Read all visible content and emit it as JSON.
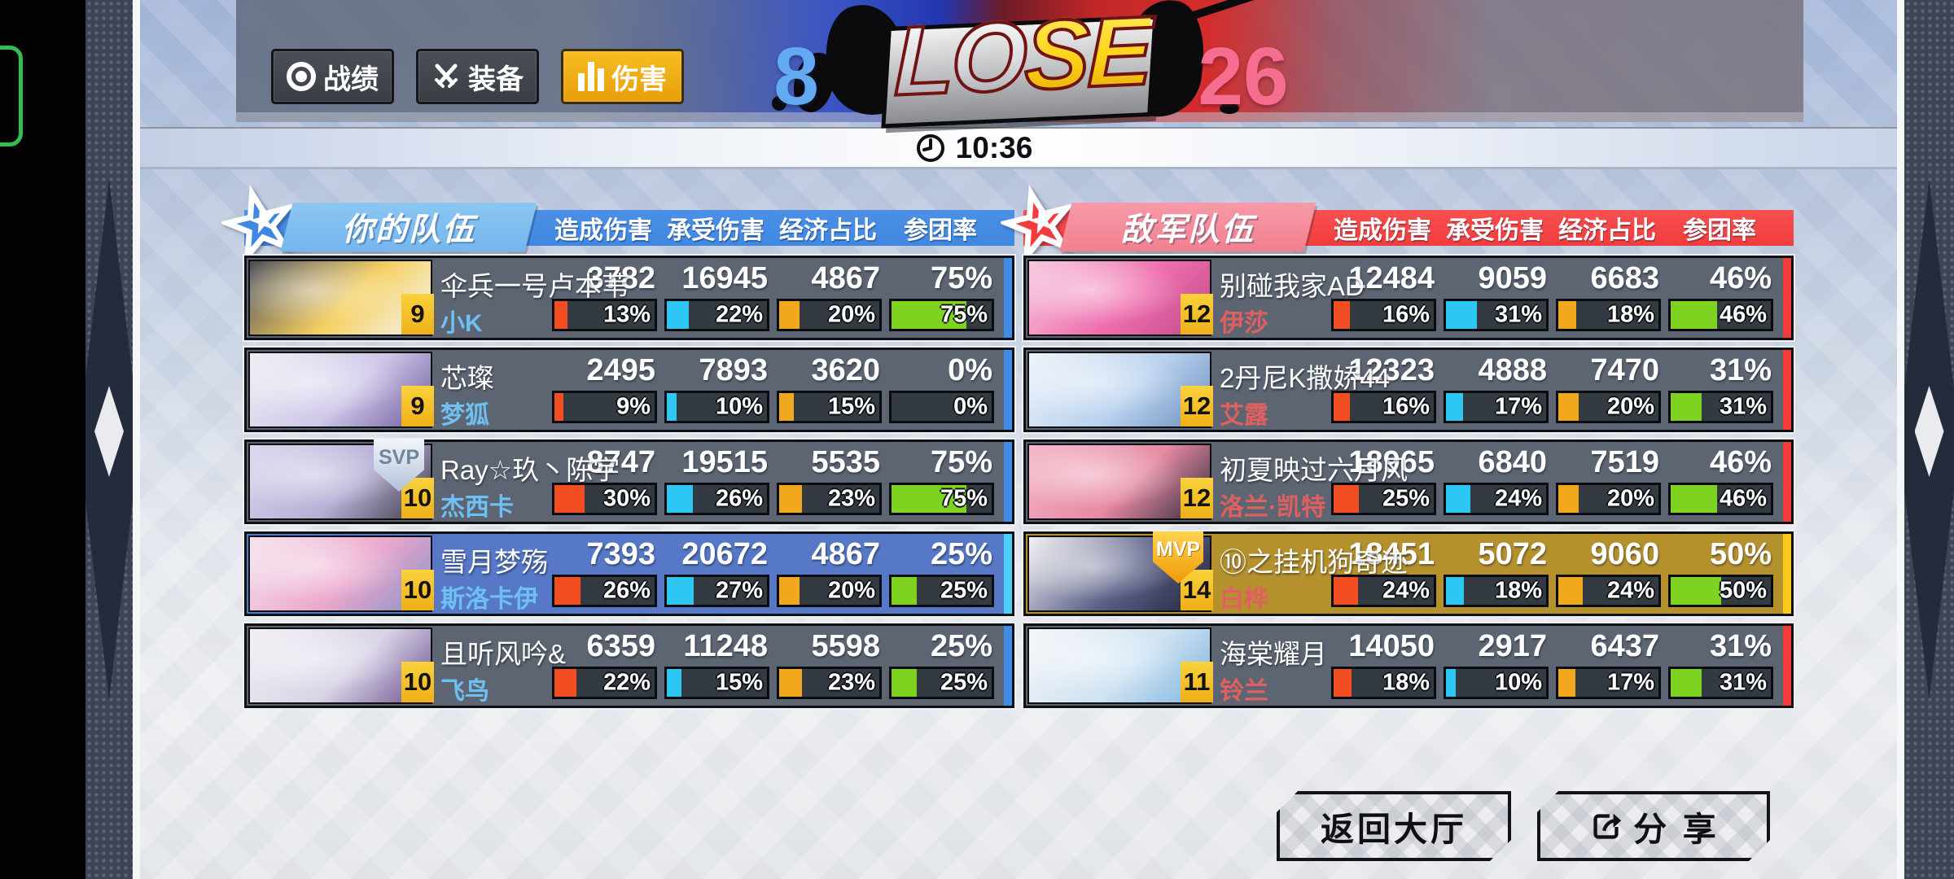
{
  "tabs": {
    "buttons": [
      {
        "label": "战绩",
        "icon": "target-icon",
        "active": false
      },
      {
        "label": "装备",
        "icon": "crossed-swords-icon",
        "active": false
      },
      {
        "label": "伤害",
        "icon": "bar-chart-icon",
        "active": true
      }
    ]
  },
  "result": {
    "text": "LOSE",
    "text_parts": [
      "LO",
      "SE"
    ],
    "score_left": "8",
    "score_right": "26",
    "duration": "10:36"
  },
  "columns": [
    "造成伤害",
    "承受伤害",
    "经济占比",
    "参团率"
  ],
  "teams": {
    "ally": {
      "title": "你的队伍",
      "players": [
        {
          "level": "9",
          "name": "伞兵一号卢本苇",
          "subname": "小K",
          "badge": null,
          "highlight": null,
          "stats": [
            "3782",
            "16945",
            "4867",
            "75%"
          ],
          "bar_pcts": [
            13,
            22,
            20,
            75
          ],
          "bar_labels": [
            "13%",
            "22%",
            "20%",
            "75%"
          ],
          "avatar_colors": [
            "#4a4e58",
            "#f5d061",
            "#f4f5f7"
          ]
        },
        {
          "level": "9",
          "name": "芯璨",
          "subname": "梦狐",
          "badge": null,
          "highlight": null,
          "stats": [
            "2495",
            "7893",
            "3620",
            "0%"
          ],
          "bar_pcts": [
            9,
            10,
            15,
            0
          ],
          "bar_labels": [
            "9%",
            "10%",
            "15%",
            "0%"
          ],
          "avatar_colors": [
            "#efeef4",
            "#cfc6e8",
            "#6b5a9e"
          ]
        },
        {
          "level": "10",
          "name": "Ray☆玖丶陈宇",
          "subname": "杰西卡",
          "badge": "SVP",
          "highlight": null,
          "stats": [
            "8747",
            "19515",
            "5535",
            "75%"
          ],
          "bar_pcts": [
            30,
            26,
            23,
            75
          ],
          "bar_labels": [
            "30%",
            "26%",
            "23%",
            "75%"
          ],
          "avatar_colors": [
            "#dcd7ee",
            "#b7aed6",
            "#3c3844"
          ]
        },
        {
          "level": "10",
          "name": "雪月梦殇",
          "subname": "斯洛卡伊",
          "badge": null,
          "highlight": "self",
          "stats": [
            "7393",
            "20672",
            "4867",
            "25%"
          ],
          "bar_pcts": [
            26,
            27,
            20,
            25
          ],
          "bar_labels": [
            "26%",
            "27%",
            "20%",
            "25%"
          ],
          "avatar_colors": [
            "#f6e3ef",
            "#eba8cc",
            "#8892c8"
          ]
        },
        {
          "level": "10",
          "name": "且听风吟&",
          "subname": "飞鸟",
          "badge": null,
          "highlight": null,
          "stats": [
            "6359",
            "11248",
            "5598",
            "25%"
          ],
          "bar_pcts": [
            22,
            15,
            23,
            25
          ],
          "bar_labels": [
            "22%",
            "15%",
            "23%",
            "25%"
          ],
          "avatar_colors": [
            "#f2f0f5",
            "#d8d3e6",
            "#6b4f8e"
          ]
        }
      ]
    },
    "enemy": {
      "title": "敌军队伍",
      "players": [
        {
          "level": "12",
          "name": "别碰我家AD",
          "subname": "伊莎",
          "badge": null,
          "highlight": null,
          "stats": [
            "12484",
            "9059",
            "6683",
            "46%"
          ],
          "bar_pcts": [
            16,
            31,
            18,
            46
          ],
          "bar_labels": [
            "16%",
            "31%",
            "18%",
            "46%"
          ],
          "avatar_colors": [
            "#f7c9de",
            "#ef6fae",
            "#c04a8a"
          ]
        },
        {
          "level": "12",
          "name": "2丹尼K撒娇44",
          "subname": "艾露",
          "badge": null,
          "highlight": null,
          "stats": [
            "12323",
            "4888",
            "7470",
            "31%"
          ],
          "bar_pcts": [
            16,
            17,
            20,
            31
          ],
          "bar_labels": [
            "16%",
            "17%",
            "20%",
            "31%"
          ],
          "avatar_colors": [
            "#eef3fa",
            "#b9d2ee",
            "#6d90c0"
          ]
        },
        {
          "level": "12",
          "name": "初夏映过六月风",
          "subname": "洛兰·凯特",
          "badge": null,
          "highlight": null,
          "stats": [
            "18965",
            "6840",
            "7519",
            "46%"
          ],
          "bar_pcts": [
            25,
            24,
            20,
            46
          ],
          "bar_labels": [
            "25%",
            "24%",
            "20%",
            "46%"
          ],
          "avatar_colors": [
            "#f3b8c8",
            "#e88aa4",
            "#2e2b38"
          ]
        },
        {
          "level": "14",
          "name": "⑩之挂机狗奇迹",
          "subname": "白桦",
          "badge": "MVP",
          "highlight": "mvp",
          "stats": [
            "18451",
            "5072",
            "9060",
            "50%"
          ],
          "bar_pcts": [
            24,
            18,
            24,
            50
          ],
          "bar_labels": [
            "24%",
            "18%",
            "24%",
            "50%"
          ],
          "avatar_colors": [
            "#f2f2f4",
            "#5a5f86",
            "#23253c"
          ]
        },
        {
          "level": "11",
          "name": "海棠耀月",
          "subname": "铃兰",
          "badge": null,
          "highlight": null,
          "stats": [
            "14050",
            "2917",
            "6437",
            "31%"
          ],
          "bar_pcts": [
            18,
            10,
            17,
            31
          ],
          "bar_labels": [
            "18%",
            "10%",
            "17%",
            "31%"
          ],
          "avatar_colors": [
            "#f5f5f8",
            "#cfe3f2",
            "#7fb4e0"
          ]
        }
      ]
    }
  },
  "footer": {
    "back_label": "返回大厅",
    "share_label": "分 享"
  },
  "colors": {
    "ally": "#3f87e0",
    "ally_banner": "#74b6ee",
    "ally_sub": "#6fc0f2",
    "ally_stripe": "#3f8de8",
    "self_row": "#5678c6",
    "self_stripe": "#4ad0f7",
    "enemy": "#f23c3c",
    "enemy_banner": "#f2808f",
    "enemy_sub": "#e06060",
    "enemy_stripe": "#f23b3b",
    "mvp_row": "#b5912e",
    "mvp_stripe": "#f6c91c",
    "row": "#5d6573",
    "bar_bg": "#343a42",
    "bar_palette": [
      "#f24e22",
      "#2ec6f2",
      "#f2a81d",
      "#7ed321"
    ],
    "score_left": "#63aaf2",
    "score_right": "#f56e90",
    "active_tab": "#eeaf14"
  }
}
